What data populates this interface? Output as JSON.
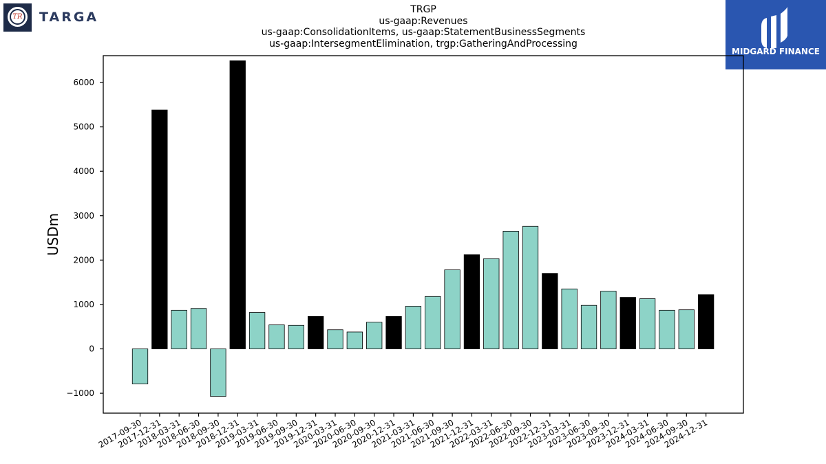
{
  "header": {
    "company_logo_text": "TARGA",
    "company_logo_monogram": "TR",
    "sponsor_logo_text": "MIDGARD FINANCE"
  },
  "colors": {
    "bar_teal": "#8dd3c7",
    "bar_black": "#000000",
    "logo_navy": "#1e2b48",
    "sponsor_blue": "#2a56b0"
  },
  "chart_data": {
    "type": "bar",
    "title": "TRGP",
    "subtitle_lines": [
      "us-gaap:Revenues",
      "us-gaap:ConsolidationItems, us-gaap:StatementBusinessSegments",
      "us-gaap:IntersegmentElimination, trgp:GatheringAndProcessing"
    ],
    "xlabel": "",
    "ylabel": "USDm",
    "ylim": [
      -1450,
      6600
    ],
    "yticks": [
      -1000,
      0,
      1000,
      2000,
      3000,
      4000,
      5000,
      6000
    ],
    "grid": false,
    "categories": [
      "2017-09-30",
      "2017-12-31",
      "2018-03-31",
      "2018-06-30",
      "2018-09-30",
      "2018-12-31",
      "2019-03-31",
      "2019-06-30",
      "2019-09-30",
      "2019-12-31",
      "2020-03-31",
      "2020-06-30",
      "2020-09-30",
      "2020-12-31",
      "2021-03-31",
      "2021-06-30",
      "2021-09-30",
      "2021-12-31",
      "2022-03-31",
      "2022-06-30",
      "2022-09-30",
      "2022-12-31",
      "2023-03-31",
      "2023-06-30",
      "2023-09-30",
      "2023-12-31",
      "2024-03-31",
      "2024-06-30",
      "2024-09-30",
      "2024-12-31"
    ],
    "values": [
      -790,
      5380,
      870,
      910,
      -1070,
      6490,
      820,
      540,
      530,
      730,
      430,
      380,
      600,
      730,
      960,
      1180,
      1780,
      2120,
      2030,
      2650,
      2760,
      1700,
      1350,
      980,
      1300,
      1160,
      1130,
      870,
      880,
      1220
    ],
    "annual_flags": [
      false,
      true,
      false,
      false,
      false,
      true,
      false,
      false,
      false,
      true,
      false,
      false,
      false,
      true,
      false,
      false,
      false,
      true,
      false,
      false,
      false,
      true,
      false,
      false,
      false,
      true,
      false,
      false,
      false,
      true
    ]
  }
}
